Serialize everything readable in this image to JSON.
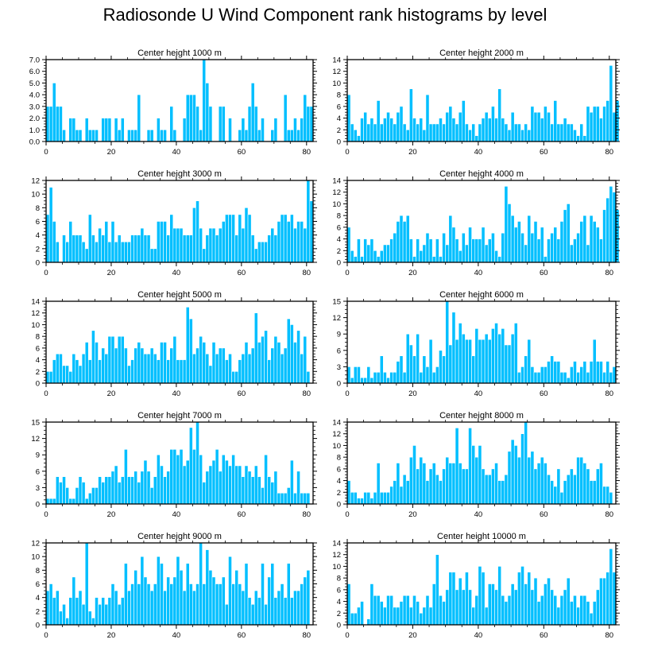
{
  "title": "Radiosonde U Wind Component rank histograms by level",
  "colors": {
    "bar": "#00bfff",
    "bar_edge": "#ffffff",
    "axis": "#000000"
  },
  "chart_data": [
    {
      "type": "bar",
      "title": "Center height 1000 m",
      "x": {
        "range": [
          0,
          82
        ],
        "ticks": [
          0,
          20,
          40,
          60,
          80
        ]
      },
      "y": {
        "range": [
          0,
          7
        ],
        "ticks": [
          0,
          1,
          2,
          3,
          4,
          5,
          6,
          7
        ],
        "tick_labels": [
          "0.0",
          "1.0",
          "2.0",
          "3.0",
          "4.0",
          "5.0",
          "6.0",
          "7.0"
        ]
      },
      "values": [
        3,
        3,
        5,
        3,
        3,
        1,
        0,
        2,
        2,
        1,
        1,
        0,
        2,
        1,
        1,
        1,
        0,
        2,
        2,
        2,
        0,
        2,
        1,
        2,
        0,
        1,
        1,
        1,
        4,
        0,
        0,
        1,
        1,
        0,
        2,
        1,
        1,
        0,
        3,
        1,
        0,
        0,
        2,
        4,
        4,
        4,
        3,
        1,
        7,
        5,
        3,
        0,
        0,
        3,
        3,
        0,
        2,
        0,
        0,
        1,
        2,
        1,
        3,
        5,
        3,
        1,
        2,
        0,
        0,
        1,
        2,
        0,
        0,
        4,
        1,
        1,
        2,
        1,
        2,
        4,
        3,
        3
      ]
    },
    {
      "type": "bar",
      "title": "Center height 2000 m",
      "x": {
        "range": [
          0,
          82
        ],
        "ticks": [
          0,
          20,
          40,
          60,
          80
        ]
      },
      "y": {
        "range": [
          0,
          14
        ],
        "ticks": [
          0,
          2,
          4,
          6,
          8,
          10,
          12,
          14
        ],
        "tick_labels": [
          "0",
          "2",
          "4",
          "6",
          "8",
          "10",
          "12",
          "14"
        ]
      },
      "values": [
        8,
        3,
        2,
        1,
        4,
        5,
        3,
        4,
        3,
        7,
        3,
        4,
        5,
        4,
        3,
        5,
        6,
        3,
        2,
        9,
        4,
        3,
        4,
        2,
        8,
        3,
        3,
        3,
        4,
        3,
        5,
        6,
        4,
        3,
        5,
        7,
        3,
        2,
        3,
        1,
        3,
        4,
        5,
        4,
        6,
        4,
        9,
        4,
        3,
        2,
        5,
        3,
        3,
        2,
        3,
        2,
        6,
        5,
        5,
        4,
        6,
        5,
        3,
        7,
        3,
        3,
        4,
        3,
        3,
        2,
        1,
        3,
        1,
        6,
        5,
        6,
        6,
        4,
        6,
        7,
        13,
        5,
        7
      ]
    },
    {
      "type": "bar",
      "title": "Center height 3000 m",
      "x": {
        "range": [
          0,
          82
        ],
        "ticks": [
          0,
          20,
          40,
          60,
          80
        ]
      },
      "y": {
        "range": [
          0,
          12
        ],
        "ticks": [
          0,
          2,
          4,
          6,
          8,
          10,
          12
        ],
        "tick_labels": [
          "0",
          "2",
          "4",
          "6",
          "8",
          "10",
          "12"
        ]
      },
      "values": [
        7,
        11,
        6,
        3,
        0,
        4,
        3,
        6,
        4,
        4,
        4,
        3,
        2,
        7,
        4,
        3,
        5,
        4,
        6,
        3,
        6,
        3,
        4,
        3,
        3,
        3,
        4,
        4,
        4,
        5,
        4,
        4,
        2,
        2,
        6,
        6,
        6,
        4,
        7,
        5,
        5,
        5,
        4,
        4,
        4,
        8,
        9,
        5,
        2,
        4,
        5,
        5,
        4,
        5,
        6,
        7,
        7,
        7,
        4,
        7,
        5,
        8,
        7,
        4,
        2,
        3,
        3,
        3,
        4,
        5,
        4,
        6,
        7,
        7,
        6,
        7,
        5,
        6,
        6,
        5,
        12,
        9
      ]
    },
    {
      "type": "bar",
      "title": "Center height 4000 m",
      "x": {
        "range": [
          0,
          82
        ],
        "ticks": [
          0,
          20,
          40,
          60,
          80
        ]
      },
      "y": {
        "range": [
          0,
          14
        ],
        "ticks": [
          0,
          2,
          4,
          6,
          8,
          10,
          12,
          14
        ],
        "tick_labels": [
          "0",
          "2",
          "4",
          "6",
          "8",
          "10",
          "12",
          "14"
        ]
      },
      "values": [
        6,
        2,
        1,
        4,
        1,
        4,
        3,
        4,
        2,
        1,
        2,
        3,
        3,
        4,
        5,
        7,
        8,
        7,
        8,
        4,
        1,
        4,
        2,
        3,
        5,
        4,
        1,
        4,
        1,
        5,
        3,
        8,
        6,
        4,
        2,
        5,
        3,
        6,
        4,
        4,
        4,
        6,
        3,
        4,
        5,
        2,
        1,
        5,
        13,
        10,
        8,
        6,
        7,
        5,
        3,
        8,
        5,
        7,
        4,
        6,
        1,
        4,
        5,
        6,
        4,
        7,
        9,
        10,
        3,
        4,
        5,
        7,
        8,
        3,
        8,
        7,
        6,
        4,
        9,
        11,
        13,
        12,
        9
      ]
    },
    {
      "type": "bar",
      "title": "Center height 5000 m",
      "x": {
        "range": [
          0,
          82
        ],
        "ticks": [
          0,
          20,
          40,
          60,
          80
        ]
      },
      "y": {
        "range": [
          0,
          14
        ],
        "ticks": [
          0,
          2,
          4,
          6,
          8,
          10,
          12,
          14
        ],
        "tick_labels": [
          "0",
          "2",
          "4",
          "6",
          "8",
          "10",
          "12",
          "14"
        ]
      },
      "values": [
        2,
        2,
        4,
        5,
        5,
        3,
        3,
        2,
        5,
        4,
        3,
        5,
        7,
        4,
        9,
        7,
        4,
        6,
        5,
        8,
        8,
        6,
        8,
        8,
        6,
        3,
        4,
        6,
        7,
        6,
        5,
        5,
        6,
        5,
        4,
        7,
        7,
        4,
        6,
        8,
        4,
        4,
        4,
        13,
        11,
        5,
        6,
        8,
        7,
        5,
        3,
        7,
        5,
        6,
        6,
        4,
        5,
        2,
        2,
        4,
        5,
        7,
        5,
        6,
        12,
        7,
        8,
        9,
        4,
        6,
        8,
        7,
        5,
        6,
        11,
        10,
        7,
        9,
        5,
        8,
        2
      ]
    },
    {
      "type": "bar",
      "title": "Center height 6000 m",
      "x": {
        "range": [
          0,
          82
        ],
        "ticks": [
          0,
          20,
          40,
          60,
          80
        ]
      },
      "y": {
        "range": [
          0,
          15
        ],
        "ticks": [
          0,
          3,
          6,
          9,
          12,
          15
        ],
        "tick_labels": [
          "0",
          "3",
          "6",
          "9",
          "12",
          "15"
        ]
      },
      "values": [
        3,
        1,
        3,
        3,
        1,
        1,
        3,
        1,
        2,
        2,
        5,
        2,
        1,
        2,
        2,
        4,
        5,
        2,
        9,
        7,
        5,
        9,
        2,
        5,
        3,
        8,
        2,
        3,
        6,
        5,
        15,
        7,
        13,
        8,
        11,
        9,
        8,
        8,
        5,
        10,
        8,
        8,
        9,
        8,
        10,
        11,
        9,
        10,
        7,
        7,
        9,
        11,
        2,
        3,
        5,
        8,
        3,
        2,
        2,
        3,
        3,
        4,
        5,
        4,
        4,
        2,
        2,
        1,
        3,
        4,
        2,
        3,
        4,
        2,
        4,
        8,
        4,
        4,
        2,
        4,
        2,
        3
      ]
    },
    {
      "type": "bar",
      "title": "Center height 7000 m",
      "x": {
        "range": [
          0,
          82
        ],
        "ticks": [
          0,
          20,
          40,
          60,
          80
        ]
      },
      "y": {
        "range": [
          0,
          15
        ],
        "ticks": [
          0,
          3,
          6,
          9,
          12,
          15
        ],
        "tick_labels": [
          "0",
          "3",
          "6",
          "9",
          "12",
          "15"
        ]
      },
      "values": [
        1,
        1,
        1,
        5,
        4,
        5,
        3,
        1,
        1,
        3,
        5,
        4,
        1,
        2,
        3,
        3,
        5,
        4,
        5,
        5,
        6,
        7,
        4,
        5,
        10,
        5,
        5,
        6,
        4,
        6,
        8,
        6,
        3,
        5,
        9,
        7,
        5,
        6,
        10,
        10,
        9,
        10,
        7,
        8,
        14,
        10,
        15,
        9,
        4,
        6,
        7,
        8,
        10,
        6,
        9,
        8,
        7,
        9,
        7,
        7,
        5,
        7,
        6,
        5,
        7,
        5,
        3,
        9,
        5,
        4,
        6,
        2,
        2,
        2,
        3,
        8,
        2,
        6,
        2,
        2,
        2
      ]
    },
    {
      "type": "bar",
      "title": "Center height 8000 m",
      "x": {
        "range": [
          0,
          82
        ],
        "ticks": [
          0,
          20,
          40,
          60,
          80
        ]
      },
      "y": {
        "range": [
          0,
          14
        ],
        "ticks": [
          0,
          2,
          4,
          6,
          8,
          10,
          12,
          14
        ],
        "tick_labels": [
          "0",
          "2",
          "4",
          "6",
          "8",
          "10",
          "12",
          "14"
        ]
      },
      "values": [
        4,
        2,
        2,
        1,
        1,
        2,
        2,
        1,
        2,
        7,
        2,
        2,
        2,
        3,
        4,
        7,
        3,
        5,
        4,
        8,
        10,
        6,
        8,
        7,
        4,
        6,
        7,
        5,
        4,
        6,
        8,
        7,
        7,
        13,
        7,
        6,
        6,
        13,
        10,
        8,
        10,
        6,
        5,
        5,
        6,
        7,
        4,
        4,
        5,
        9,
        11,
        10,
        8,
        12,
        14,
        8,
        9,
        6,
        7,
        8,
        7,
        5,
        4,
        3,
        6,
        2,
        4,
        5,
        6,
        5,
        8,
        8,
        7,
        6,
        4,
        4,
        6,
        7,
        3,
        3,
        2
      ]
    },
    {
      "type": "bar",
      "title": "Center height 9000 m",
      "x": {
        "range": [
          0,
          82
        ],
        "ticks": [
          0,
          20,
          40,
          60,
          80
        ]
      },
      "y": {
        "range": [
          0,
          12
        ],
        "ticks": [
          0,
          2,
          4,
          6,
          8,
          10,
          12
        ],
        "tick_labels": [
          "0",
          "2",
          "4",
          "6",
          "8",
          "10",
          "12"
        ]
      },
      "values": [
        5,
        6,
        4,
        5,
        2,
        3,
        1,
        4,
        7,
        4,
        5,
        3,
        12,
        2,
        1,
        4,
        3,
        4,
        3,
        4,
        6,
        5,
        3,
        4,
        9,
        5,
        6,
        8,
        6,
        10,
        7,
        6,
        5,
        6,
        10,
        9,
        5,
        7,
        6,
        7,
        10,
        8,
        5,
        9,
        6,
        5,
        6,
        12,
        6,
        11,
        8,
        7,
        6,
        6,
        7,
        3,
        10,
        6,
        8,
        6,
        5,
        9,
        4,
        3,
        5,
        4,
        9,
        3,
        7,
        9,
        4,
        5,
        6,
        4,
        9,
        4,
        5,
        5,
        6,
        7,
        8
      ]
    },
    {
      "type": "bar",
      "title": "Center height 10000 m",
      "x": {
        "range": [
          0,
          82
        ],
        "ticks": [
          0,
          20,
          40,
          60,
          80
        ]
      },
      "y": {
        "range": [
          0,
          14
        ],
        "ticks": [
          0,
          2,
          4,
          6,
          8,
          10,
          12,
          14
        ],
        "tick_labels": [
          "0",
          "2",
          "4",
          "6",
          "8",
          "10",
          "12",
          "14"
        ]
      },
      "values": [
        7,
        2,
        2,
        3,
        4,
        0,
        1,
        7,
        5,
        5,
        4,
        3,
        5,
        5,
        3,
        3,
        4,
        5,
        5,
        3,
        5,
        4,
        2,
        3,
        5,
        3,
        7,
        12,
        5,
        4,
        6,
        9,
        9,
        6,
        8,
        6,
        9,
        6,
        3,
        5,
        10,
        9,
        3,
        7,
        7,
        6,
        10,
        5,
        4,
        5,
        7,
        6,
        9,
        10,
        7,
        9,
        6,
        8,
        4,
        5,
        7,
        8,
        6,
        5,
        3,
        5,
        6,
        8,
        4,
        5,
        3,
        5,
        5,
        4,
        2,
        4,
        6,
        8,
        8,
        9,
        13,
        9
      ]
    }
  ]
}
